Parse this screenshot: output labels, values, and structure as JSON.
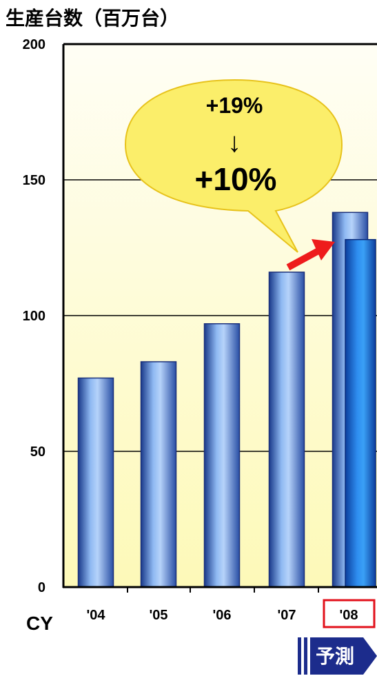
{
  "chart_data": {
    "type": "bar",
    "title": "生産台数（百万台）",
    "xlabel": "CY",
    "ylabel": "",
    "ylim": [
      0,
      200
    ],
    "yticks": [
      0,
      50,
      100,
      150,
      200
    ],
    "grid": true,
    "categories": [
      "'04",
      "'05",
      "'06",
      "'07",
      "'08"
    ],
    "series": [
      {
        "values": [
          77,
          83,
          97,
          116,
          138
        ]
      }
    ],
    "revised": {
      "category": "'08",
      "value": 128
    },
    "annotations": {
      "bubble_top": "+19%",
      "bubble_arrow": "↓",
      "bubble_bottom": "+10%",
      "forecast_label": "予測"
    },
    "colors": {
      "bar": "#6f9fea",
      "bar_dark": "#1a3a8a",
      "revised_bar": "#1e7ee0",
      "plot_bg_top": "#fffef5",
      "plot_bg_bottom": "#fdf9b8",
      "bubble": "#fbee6a",
      "bubble_edge": "#e7c21b",
      "arrow": "#ee1c1c",
      "highlight_box": "#e2111b",
      "forecast_bg": "#1c2c8c"
    }
  }
}
